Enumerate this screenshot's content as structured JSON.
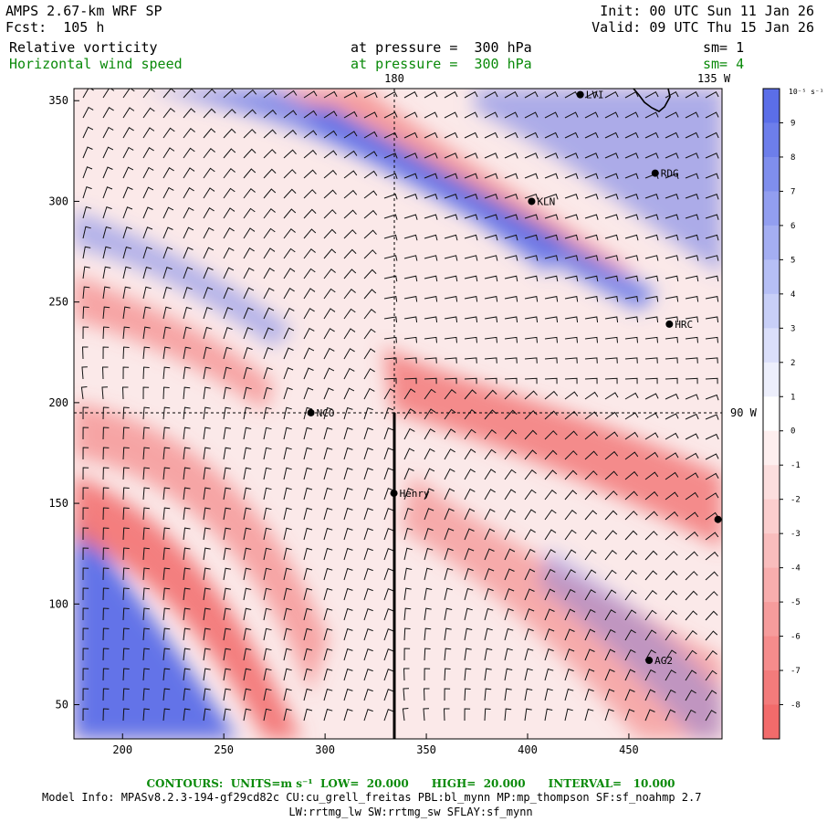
{
  "header": {
    "model": "AMPS 2.67-km WRF SP",
    "forecast": "Fcst:  105 h",
    "init": "Init: 00 UTC Sun 11 Jan 26",
    "valid": "Valid: 09 UTC Thu 15 Jan 26",
    "field1_name": "Relative vorticity",
    "field1_level": "at pressure =  300 hPa",
    "field1_smooth": "sm= 1",
    "field2_name": "Horizontal wind speed",
    "field2_level": "at pressure =  300 hPa",
    "field2_smooth": "sm= 4"
  },
  "map": {
    "x_ticks": [
      {
        "value": 200,
        "label": "200"
      },
      {
        "value": 250,
        "label": "250"
      },
      {
        "value": 300,
        "label": "300"
      },
      {
        "value": 350,
        "label": "350"
      },
      {
        "value": 400,
        "label": "400"
      },
      {
        "value": 450,
        "label": "450"
      }
    ],
    "y_ticks": [
      {
        "value": 350,
        "label": "350"
      },
      {
        "value": 300,
        "label": "300"
      },
      {
        "value": 250,
        "label": "250"
      },
      {
        "value": 200,
        "label": "200"
      },
      {
        "value": 150,
        "label": "150"
      },
      {
        "value": 100,
        "label": "100"
      },
      {
        "value": 50,
        "label": "50"
      }
    ],
    "x_range": [
      176,
      496
    ],
    "y_range": [
      33,
      356
    ],
    "meridian_label_180": "180",
    "meridian_label_135w": "135 W",
    "meridian_label_90w": "90 W",
    "stations": [
      {
        "name": "NCO",
        "x": 293,
        "y": 195
      },
      {
        "name": "KLN",
        "x": 402,
        "y": 300
      },
      {
        "name": "RDG",
        "x": 463,
        "y": 314
      },
      {
        "name": "HRC",
        "x": 470,
        "y": 239
      },
      {
        "name": "Henry",
        "x": 334,
        "y": 155
      },
      {
        "name": "AG2",
        "x": 460,
        "y": 72
      },
      {
        "name": "",
        "x": 494,
        "y": 142
      },
      {
        "name": "LVI",
        "x": 426,
        "y": 353
      }
    ]
  },
  "colorbar": {
    "units_label": "10⁻⁵ s⁻¹",
    "tick_labels": [
      "9",
      "8",
      "7",
      "6",
      "5",
      "4",
      "3",
      "2",
      "1",
      "0",
      "-1",
      "-2",
      "-3",
      "-4",
      "-5",
      "-6",
      "-7",
      "-8"
    ],
    "colors": {
      "positive": "#5b6ee8",
      "negative": "#f26b6b",
      "neutral": "#ffffff"
    }
  },
  "footer": {
    "contours": "CONTOURS:  UNITS=m s⁻¹  LOW=  20.000      HIGH=  20.000      INTERVAL=   10.000",
    "model_info": "Model Info: MPASv8.2.3-194-gf29cd82c CU:cu_grell_freitas PBL:bl_mynn MP:mp_thompson SF:sf_noahmp 2.7",
    "model_info2": "LW:rrtmg_lw SW:rrtmg_sw SFLAY:sf_mynn"
  }
}
